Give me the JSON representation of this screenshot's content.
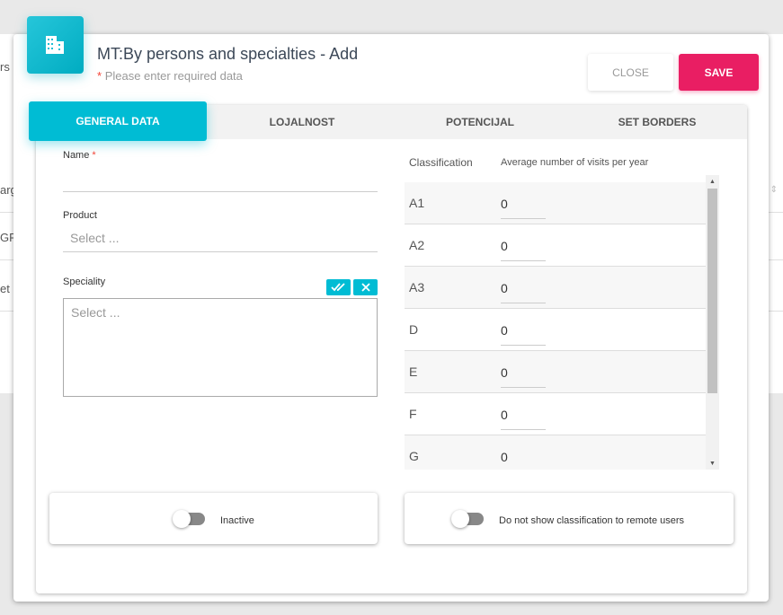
{
  "background": {
    "fragments": [
      "rs",
      "arg",
      "GR",
      "et"
    ]
  },
  "dialog": {
    "title": "MT:By persons and specialties - Add",
    "required_note": "Please enter required data",
    "required_mark": "*",
    "close_label": "CLOSE",
    "save_label": "SAVE",
    "icon": "building-icon"
  },
  "tabs": [
    {
      "label": "GENERAL DATA",
      "active": true
    },
    {
      "label": "LOJALNOST"
    },
    {
      "label": "POTENCIJAL"
    },
    {
      "label": "SET BORDERS"
    }
  ],
  "form": {
    "name_label": "Name",
    "name_value": "",
    "product_label": "Product",
    "product_placeholder": "Select ...",
    "speciality_label": "Speciality",
    "speciality_placeholder": "Select ..."
  },
  "table": {
    "headers": [
      "Classification",
      "Average number of visits per year"
    ],
    "rows": [
      {
        "c": "A1",
        "v": "0"
      },
      {
        "c": "A2",
        "v": "0"
      },
      {
        "c": "A3",
        "v": "0"
      },
      {
        "c": "D",
        "v": "0"
      },
      {
        "c": "E",
        "v": "0"
      },
      {
        "c": "F",
        "v": "0"
      },
      {
        "c": "G",
        "v": "0"
      }
    ]
  },
  "toggles": {
    "inactive": "Inactive",
    "hide_classification": "Do not show classification to remote users"
  },
  "colors": {
    "accent": "#00bcd4",
    "save": "#e91e63"
  }
}
